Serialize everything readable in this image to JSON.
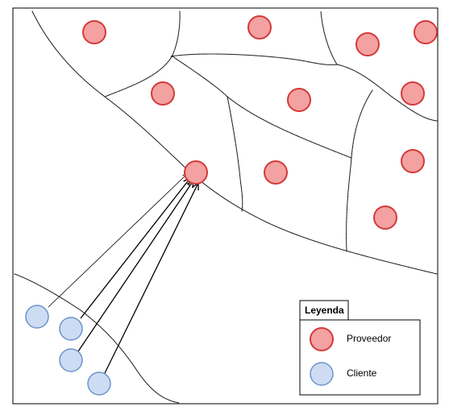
{
  "legend": {
    "title": "Leyenda",
    "items": [
      {
        "label": "Proveedor",
        "symbol": "provider"
      },
      {
        "label": "Cliente",
        "symbol": "client"
      }
    ]
  },
  "colors": {
    "provider_fill": "#f4a1a1",
    "provider_stroke": "#d33a3a",
    "client_fill": "#cddcf2",
    "client_stroke": "#6a94cc",
    "line": "#000000"
  },
  "diagram": {
    "provider_count": 12,
    "client_count": 4,
    "connections": [
      {
        "from": "client-1",
        "to": "provider-hub"
      },
      {
        "from": "client-2",
        "to": "provider-hub"
      },
      {
        "from": "client-3",
        "to": "provider-hub"
      },
      {
        "from": "client-4",
        "to": "provider-hub"
      }
    ]
  }
}
